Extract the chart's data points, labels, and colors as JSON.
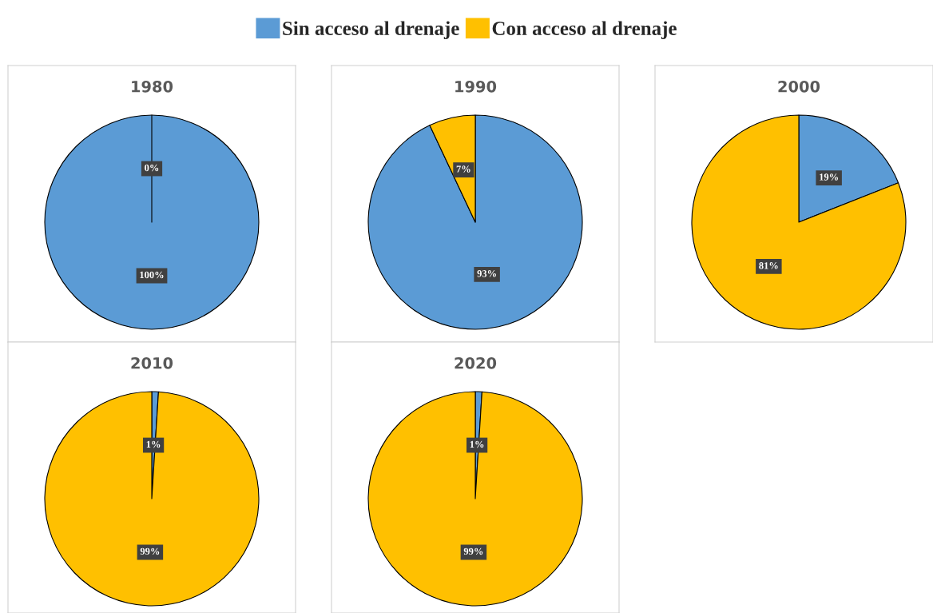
{
  "chart_data": [
    {
      "type": "pie",
      "title": "1980",
      "categories": [
        "Sin acceso al drenaje",
        "Con acceso al drenaje"
      ],
      "values": [
        100,
        0
      ],
      "colors": [
        "#5b9bd5",
        "#ffc000"
      ],
      "value_labels": [
        "100%",
        "0%"
      ],
      "legend": "top"
    },
    {
      "type": "pie",
      "title": "1990",
      "values": [
        93,
        7
      ],
      "colors": [
        "#5b9bd5",
        "#ffc000"
      ],
      "value_labels": [
        "93%",
        "7%"
      ]
    },
    {
      "type": "pie",
      "title": "2000",
      "values": [
        19,
        81
      ],
      "colors": [
        "#5b9bd5",
        "#ffc000"
      ],
      "value_labels": [
        "19%",
        "81%"
      ]
    },
    {
      "type": "pie",
      "title": "2010",
      "values": [
        1,
        99
      ],
      "colors": [
        "#5b9bd5",
        "#ffc000"
      ],
      "value_labels": [
        "1%",
        "99%"
      ]
    },
    {
      "type": "pie",
      "title": "2020",
      "values": [
        1,
        99
      ],
      "colors": [
        "#5b9bd5",
        "#ffc000"
      ],
      "value_labels": [
        "1%",
        "99%"
      ]
    }
  ]
}
